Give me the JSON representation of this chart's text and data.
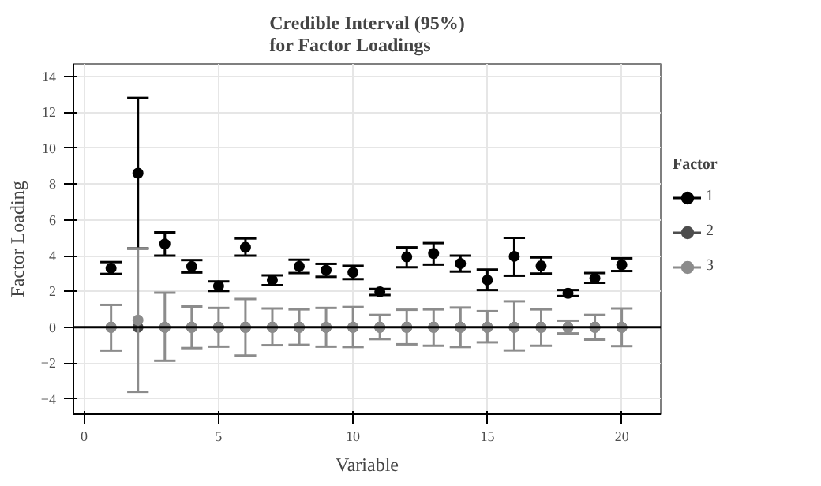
{
  "chart_data": {
    "type": "scatter",
    "title": "Credible Interval (95%)\nfor Factor Loadings",
    "xlabel": "Variable",
    "ylabel": "Factor Loading",
    "legend_title": "Factor",
    "x": [
      1,
      2,
      3,
      4,
      5,
      6,
      7,
      8,
      9,
      10,
      11,
      12,
      13,
      14,
      15,
      16,
      17,
      18,
      19,
      20
    ],
    "series": [
      {
        "name": "1",
        "color": "#000000",
        "values": [
          3.3,
          8.6,
          4.65,
          3.4,
          2.3,
          4.46,
          2.64,
          3.4,
          3.19,
          3.06,
          1.98,
          3.93,
          4.12,
          3.56,
          2.64,
          3.96,
          3.43,
          1.9,
          2.74,
          3.48
        ],
        "errors": [
          [
            2.98,
            3.64
          ],
          [
            4.4,
            12.8
          ],
          [
            4.0,
            5.3
          ],
          [
            3.06,
            3.75
          ],
          [
            2.03,
            2.56
          ],
          [
            4.0,
            4.96
          ],
          [
            2.35,
            2.9
          ],
          [
            3.03,
            3.77
          ],
          [
            2.82,
            3.54
          ],
          [
            2.69,
            3.43
          ],
          [
            1.8,
            2.14
          ],
          [
            3.35,
            4.46
          ],
          [
            3.5,
            4.7
          ],
          [
            3.11,
            4.0
          ],
          [
            2.08,
            3.22
          ],
          [
            2.88,
            4.99
          ],
          [
            3.0,
            3.9
          ],
          [
            1.74,
            2.08
          ],
          [
            2.48,
            3.03
          ],
          [
            3.14,
            3.85
          ]
        ]
      },
      {
        "name": "2",
        "color": "#4d4d4d",
        "values": [
          0,
          0,
          0,
          0,
          0,
          0,
          0,
          0,
          0,
          0,
          0,
          0,
          0,
          0,
          0,
          0,
          0,
          0,
          0,
          0
        ]
      },
      {
        "name": "3",
        "color": "#8c8c8c",
        "values": [
          0,
          0.4,
          0,
          0,
          0,
          0,
          0,
          0,
          0,
          0,
          0,
          0,
          0,
          0,
          0,
          0,
          0,
          0,
          0,
          0
        ],
        "errors": [
          [
            -1.3,
            1.25
          ],
          [
            -3.6,
            4.4
          ],
          [
            -1.87,
            1.93
          ],
          [
            -1.16,
            1.16
          ],
          [
            -1.08,
            1.08
          ],
          [
            -1.58,
            1.58
          ],
          [
            -1.0,
            1.05
          ],
          [
            -0.98,
            1.0
          ],
          [
            -1.08,
            1.08
          ],
          [
            -1.1,
            1.13
          ],
          [
            -0.66,
            0.69
          ],
          [
            -0.95,
            0.98
          ],
          [
            -1.03,
            1.0
          ],
          [
            -1.1,
            1.1
          ],
          [
            -0.84,
            0.9
          ],
          [
            -1.29,
            1.45
          ],
          [
            -1.03,
            1.0
          ],
          [
            -0.34,
            0.37
          ],
          [
            -0.69,
            0.69
          ],
          [
            -1.05,
            1.05
          ]
        ]
      }
    ],
    "xlim": [
      -0.4,
      21.45
    ],
    "ylim": [
      -4.85,
      14.7
    ],
    "xticks": [
      0,
      5,
      10,
      15,
      20
    ],
    "yticks": [
      -4,
      -2,
      0,
      2,
      4,
      6,
      8,
      10,
      12,
      14
    ],
    "ref_lines": [
      {
        "axis": "y",
        "value": 0,
        "color": "#000000"
      }
    ],
    "grid": true,
    "legend": "right",
    "marker": "circle"
  }
}
